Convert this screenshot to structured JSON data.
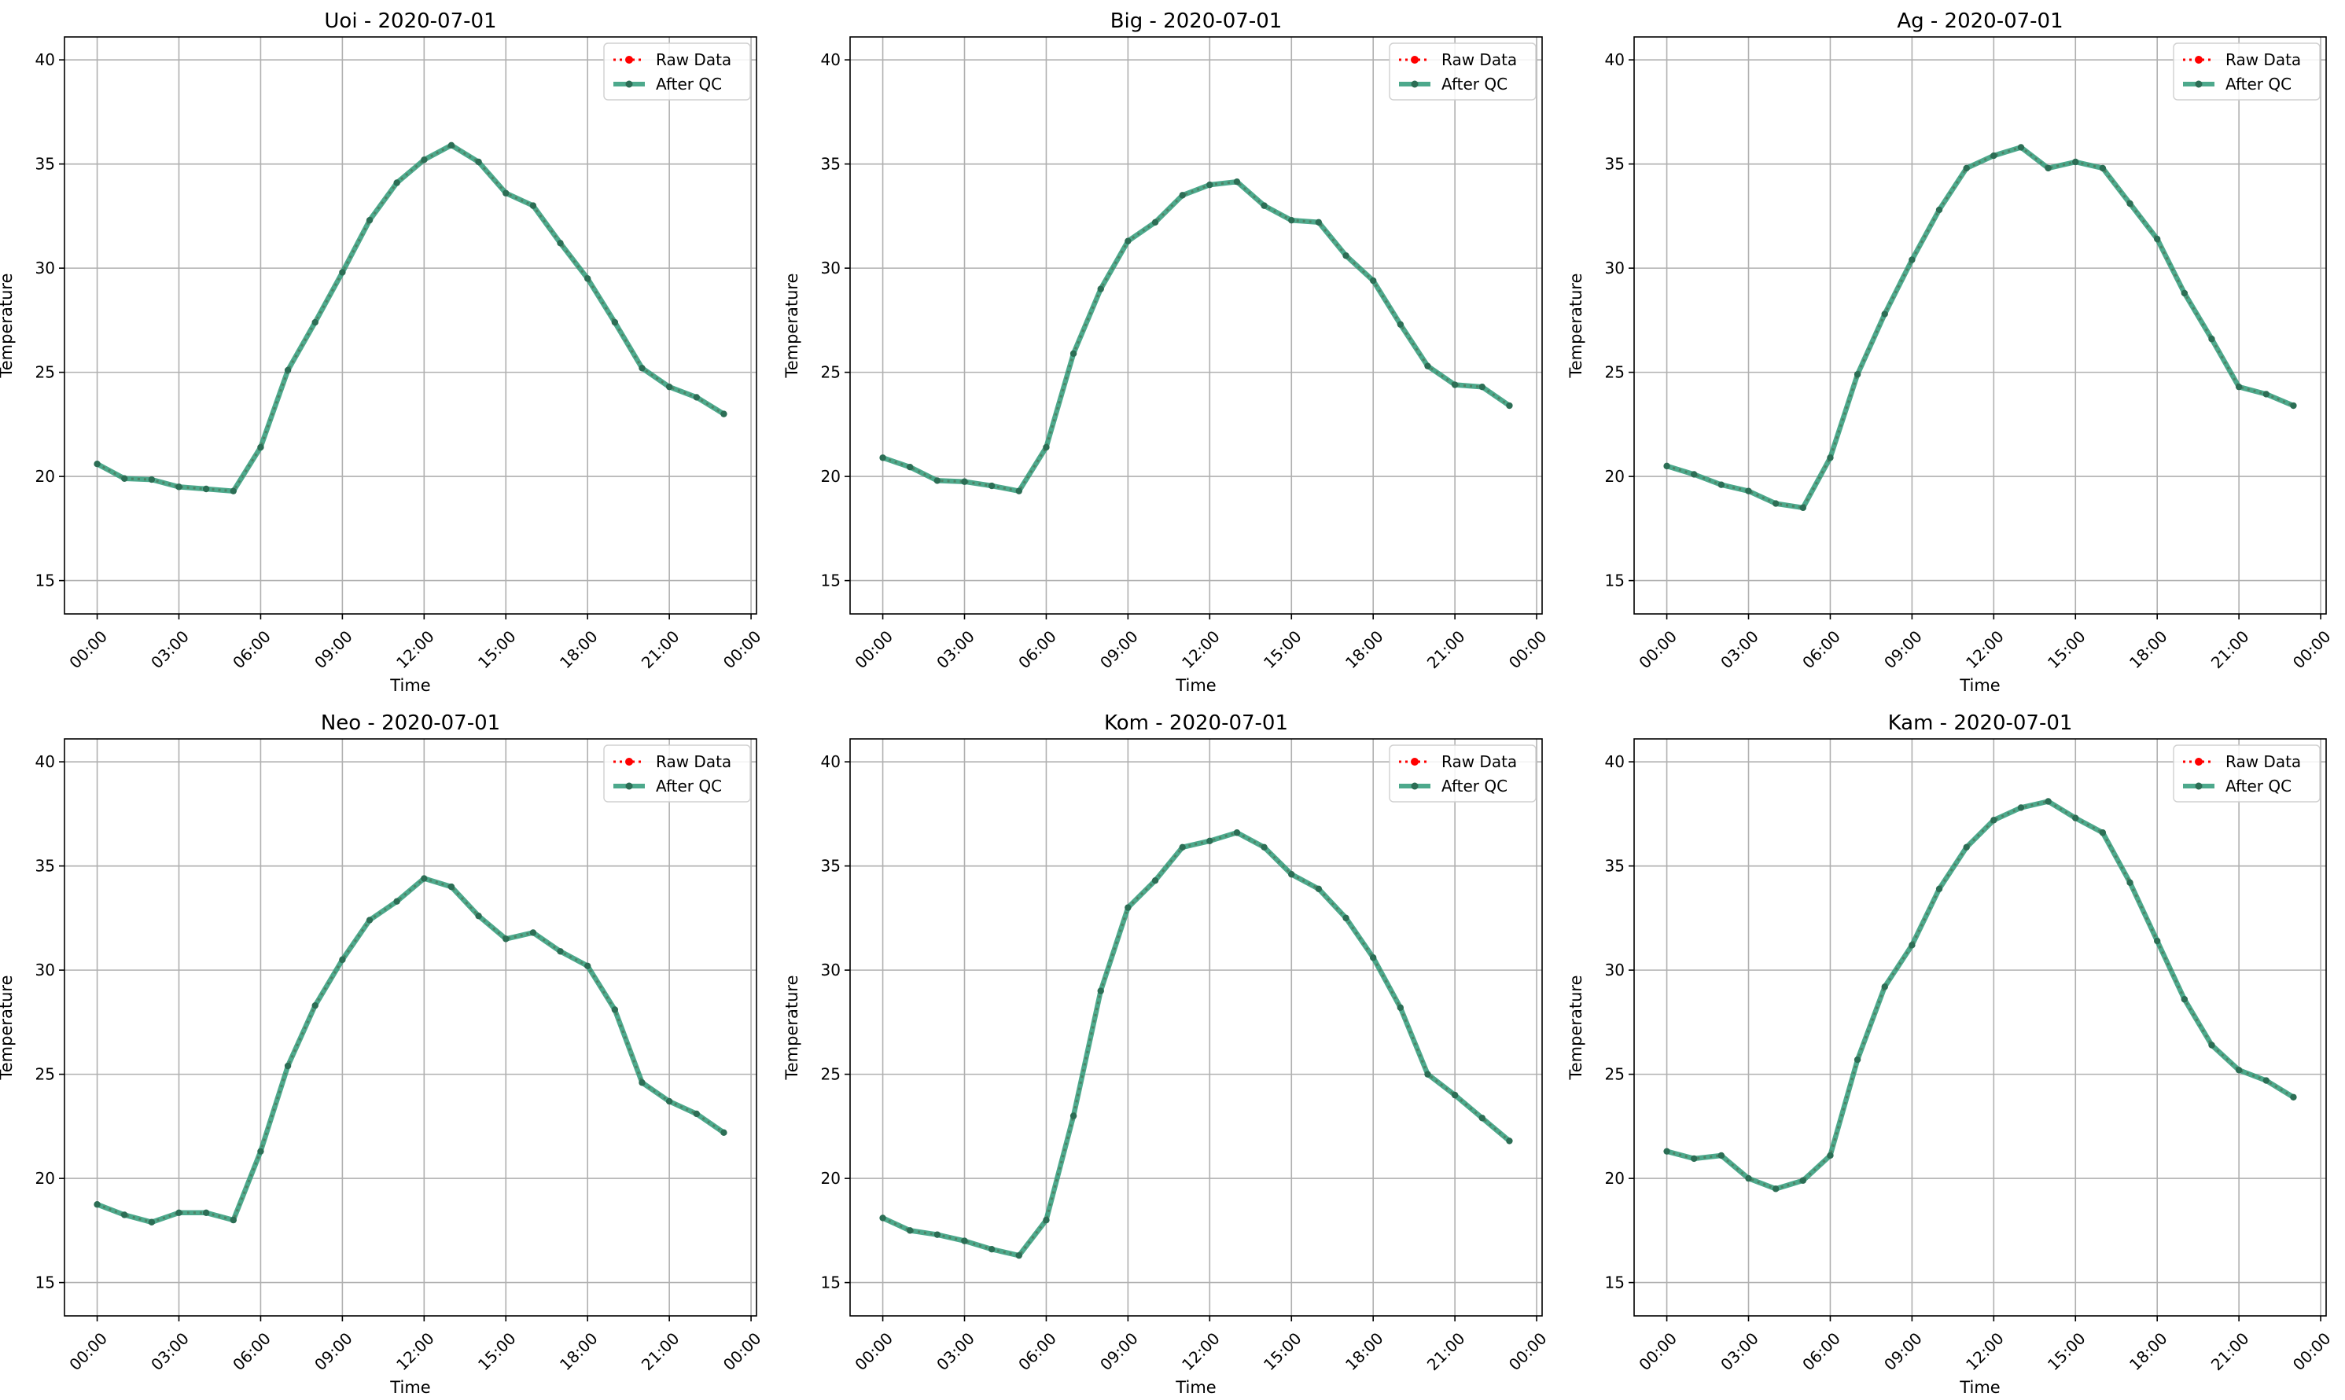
{
  "figure": {
    "background": "#ffffff"
  },
  "legend": {
    "raw_label": "Raw Data",
    "qc_label": "After QC",
    "placement": "upper-right"
  },
  "styles": {
    "raw_color": "#ff0000",
    "qc_color": "#2e9a78",
    "qc_marker_color": "#2c6e55",
    "grid_color": "#b0b0b0"
  },
  "chart_data": [
    {
      "type": "line",
      "title": "Uoi - 2020-07-01",
      "xlabel": "Time",
      "ylabel": "Temperature",
      "ylim": [
        13.4,
        41.1
      ],
      "xlim": [
        -1.2,
        24.2
      ],
      "yticks": [
        15,
        20,
        25,
        30,
        35,
        40
      ],
      "xticks": [
        "00:00",
        "03:00",
        "06:00",
        "09:00",
        "12:00",
        "15:00",
        "18:00",
        "21:00",
        "00:00"
      ],
      "grid": true,
      "legend": "top-right",
      "x": [
        "00:00",
        "01:00",
        "02:00",
        "03:00",
        "04:00",
        "05:00",
        "06:00",
        "07:00",
        "08:00",
        "09:00",
        "10:00",
        "11:00",
        "12:00",
        "13:00",
        "14:00",
        "15:00",
        "16:00",
        "17:00",
        "18:00",
        "19:00",
        "20:00",
        "21:00",
        "22:00",
        "23:00"
      ],
      "series": [
        {
          "name": "Raw Data",
          "values": [
            20.6,
            19.9,
            19.85,
            19.5,
            19.4,
            19.3,
            21.4,
            25.1,
            27.4,
            29.8,
            32.3,
            34.1,
            35.2,
            35.9,
            35.1,
            33.6,
            33.0,
            31.2,
            29.5,
            27.4,
            25.2,
            24.3,
            23.8,
            23.0
          ]
        },
        {
          "name": "After QC",
          "values": [
            20.6,
            19.9,
            19.85,
            19.5,
            19.4,
            19.3,
            21.4,
            25.1,
            27.4,
            29.8,
            32.3,
            34.1,
            35.2,
            35.9,
            35.1,
            33.6,
            33.0,
            31.2,
            29.5,
            27.4,
            25.2,
            24.3,
            23.8,
            23.0
          ]
        }
      ]
    },
    {
      "type": "line",
      "title": "Big - 2020-07-01",
      "xlabel": "Time",
      "ylabel": "Temperature",
      "ylim": [
        13.4,
        41.1
      ],
      "xlim": [
        -1.2,
        24.2
      ],
      "yticks": [
        15,
        20,
        25,
        30,
        35,
        40
      ],
      "xticks": [
        "00:00",
        "03:00",
        "06:00",
        "09:00",
        "12:00",
        "15:00",
        "18:00",
        "21:00",
        "00:00"
      ],
      "grid": true,
      "legend": "top-right",
      "x": [
        "00:00",
        "01:00",
        "02:00",
        "03:00",
        "04:00",
        "05:00",
        "06:00",
        "07:00",
        "08:00",
        "09:00",
        "10:00",
        "11:00",
        "12:00",
        "13:00",
        "14:00",
        "15:00",
        "16:00",
        "17:00",
        "18:00",
        "19:00",
        "20:00",
        "21:00",
        "22:00",
        "23:00"
      ],
      "series": [
        {
          "name": "Raw Data",
          "values": [
            20.9,
            20.45,
            19.8,
            19.75,
            19.55,
            19.3,
            21.4,
            25.9,
            29.0,
            31.3,
            32.2,
            33.5,
            34.0,
            34.15,
            33.0,
            32.3,
            32.2,
            30.6,
            29.4,
            27.3,
            25.3,
            24.4,
            24.3,
            23.4
          ]
        },
        {
          "name": "After QC",
          "values": [
            20.9,
            20.45,
            19.8,
            19.75,
            19.55,
            19.3,
            21.4,
            25.9,
            29.0,
            31.3,
            32.2,
            33.5,
            34.0,
            34.15,
            33.0,
            32.3,
            32.2,
            30.6,
            29.4,
            27.3,
            25.3,
            24.4,
            24.3,
            23.4
          ]
        }
      ]
    },
    {
      "type": "line",
      "title": "Ag - 2020-07-01",
      "xlabel": "Time",
      "ylabel": "Temperature",
      "ylim": [
        13.4,
        41.1
      ],
      "xlim": [
        -1.2,
        24.2
      ],
      "yticks": [
        15,
        20,
        25,
        30,
        35,
        40
      ],
      "xticks": [
        "00:00",
        "03:00",
        "06:00",
        "09:00",
        "12:00",
        "15:00",
        "18:00",
        "21:00",
        "00:00"
      ],
      "grid": true,
      "legend": "top-right",
      "x": [
        "00:00",
        "01:00",
        "02:00",
        "03:00",
        "04:00",
        "05:00",
        "06:00",
        "07:00",
        "08:00",
        "09:00",
        "10:00",
        "11:00",
        "12:00",
        "13:00",
        "14:00",
        "15:00",
        "16:00",
        "17:00",
        "18:00",
        "19:00",
        "20:00",
        "21:00",
        "22:00",
        "23:00"
      ],
      "series": [
        {
          "name": "Raw Data",
          "values": [
            20.5,
            20.1,
            19.6,
            19.3,
            18.7,
            18.5,
            20.9,
            24.9,
            27.8,
            30.4,
            32.8,
            34.8,
            35.4,
            35.8,
            34.8,
            35.1,
            34.8,
            33.1,
            31.4,
            28.8,
            26.6,
            24.3,
            23.95,
            23.4
          ]
        },
        {
          "name": "After QC",
          "values": [
            20.5,
            20.1,
            19.6,
            19.3,
            18.7,
            18.5,
            20.9,
            24.9,
            27.8,
            30.4,
            32.8,
            34.8,
            35.4,
            35.8,
            34.8,
            35.1,
            34.8,
            33.1,
            31.4,
            28.8,
            26.6,
            24.3,
            23.95,
            23.4
          ]
        }
      ]
    },
    {
      "type": "line",
      "title": "Neo - 2020-07-01",
      "xlabel": "Time",
      "ylabel": "Temperature",
      "ylim": [
        13.4,
        41.1
      ],
      "xlim": [
        -1.2,
        24.2
      ],
      "yticks": [
        15,
        20,
        25,
        30,
        35,
        40
      ],
      "xticks": [
        "00:00",
        "03:00",
        "06:00",
        "09:00",
        "12:00",
        "15:00",
        "18:00",
        "21:00",
        "00:00"
      ],
      "grid": true,
      "legend": "top-right",
      "x": [
        "00:00",
        "01:00",
        "02:00",
        "03:00",
        "04:00",
        "05:00",
        "06:00",
        "07:00",
        "08:00",
        "09:00",
        "10:00",
        "11:00",
        "12:00",
        "13:00",
        "14:00",
        "15:00",
        "16:00",
        "17:00",
        "18:00",
        "19:00",
        "20:00",
        "21:00",
        "22:00",
        "23:00"
      ],
      "series": [
        {
          "name": "Raw Data",
          "values": [
            18.75,
            18.25,
            17.9,
            18.35,
            18.35,
            18.0,
            21.3,
            25.4,
            28.3,
            30.5,
            32.4,
            33.3,
            34.4,
            34.0,
            32.6,
            31.5,
            31.8,
            30.9,
            30.2,
            28.1,
            24.6,
            23.7,
            23.1,
            22.2
          ]
        },
        {
          "name": "After QC",
          "values": [
            18.75,
            18.25,
            17.9,
            18.35,
            18.35,
            18.0,
            21.3,
            25.4,
            28.3,
            30.5,
            32.4,
            33.3,
            34.4,
            34.0,
            32.6,
            31.5,
            31.8,
            30.9,
            30.2,
            28.1,
            24.6,
            23.7,
            23.1,
            22.2
          ]
        }
      ]
    },
    {
      "type": "line",
      "title": "Kom - 2020-07-01",
      "xlabel": "Time",
      "ylabel": "Temperature",
      "ylim": [
        13.4,
        41.1
      ],
      "xlim": [
        -1.2,
        24.2
      ],
      "yticks": [
        15,
        20,
        25,
        30,
        35,
        40
      ],
      "xticks": [
        "00:00",
        "03:00",
        "06:00",
        "09:00",
        "12:00",
        "15:00",
        "18:00",
        "21:00",
        "00:00"
      ],
      "grid": true,
      "legend": "top-right",
      "x": [
        "00:00",
        "01:00",
        "02:00",
        "03:00",
        "04:00",
        "05:00",
        "06:00",
        "07:00",
        "08:00",
        "09:00",
        "10:00",
        "11:00",
        "12:00",
        "13:00",
        "14:00",
        "15:00",
        "16:00",
        "17:00",
        "18:00",
        "19:00",
        "20:00",
        "21:00",
        "22:00",
        "23:00"
      ],
      "series": [
        {
          "name": "Raw Data",
          "values": [
            18.1,
            17.5,
            17.3,
            17.0,
            16.6,
            16.3,
            18.0,
            23.0,
            29.0,
            33.0,
            34.3,
            35.9,
            36.2,
            36.6,
            35.9,
            34.6,
            33.9,
            32.5,
            30.6,
            28.2,
            25.0,
            24.0,
            22.9,
            21.8
          ]
        },
        {
          "name": "After QC",
          "values": [
            18.1,
            17.5,
            17.3,
            17.0,
            16.6,
            16.3,
            18.0,
            23.0,
            29.0,
            33.0,
            34.3,
            35.9,
            36.2,
            36.6,
            35.9,
            34.6,
            33.9,
            32.5,
            30.6,
            28.2,
            25.0,
            24.0,
            22.9,
            21.8
          ]
        }
      ]
    },
    {
      "type": "line",
      "title": "Kam - 2020-07-01",
      "xlabel": "Time",
      "ylabel": "Temperature",
      "ylim": [
        13.4,
        41.1
      ],
      "xlim": [
        -1.2,
        24.2
      ],
      "yticks": [
        15,
        20,
        25,
        30,
        35,
        40
      ],
      "xticks": [
        "00:00",
        "03:00",
        "06:00",
        "09:00",
        "12:00",
        "15:00",
        "18:00",
        "21:00",
        "00:00"
      ],
      "grid": true,
      "legend": "top-right",
      "x": [
        "00:00",
        "01:00",
        "02:00",
        "03:00",
        "04:00",
        "05:00",
        "06:00",
        "07:00",
        "08:00",
        "09:00",
        "10:00",
        "11:00",
        "12:00",
        "13:00",
        "14:00",
        "15:00",
        "16:00",
        "17:00",
        "18:00",
        "19:00",
        "20:00",
        "21:00",
        "22:00",
        "23:00"
      ],
      "series": [
        {
          "name": "Raw Data",
          "values": [
            21.3,
            20.95,
            21.1,
            20.0,
            19.5,
            19.9,
            21.1,
            25.7,
            29.2,
            31.2,
            33.9,
            35.9,
            37.2,
            37.8,
            38.1,
            37.3,
            36.6,
            34.2,
            31.4,
            28.6,
            26.4,
            25.2,
            24.7,
            23.9
          ]
        },
        {
          "name": "After QC",
          "values": [
            21.3,
            20.95,
            21.1,
            20.0,
            19.5,
            19.9,
            21.1,
            25.7,
            29.2,
            31.2,
            33.9,
            35.9,
            37.2,
            37.8,
            38.1,
            37.3,
            36.6,
            34.2,
            31.4,
            28.6,
            26.4,
            25.2,
            24.7,
            23.9
          ]
        }
      ]
    }
  ]
}
